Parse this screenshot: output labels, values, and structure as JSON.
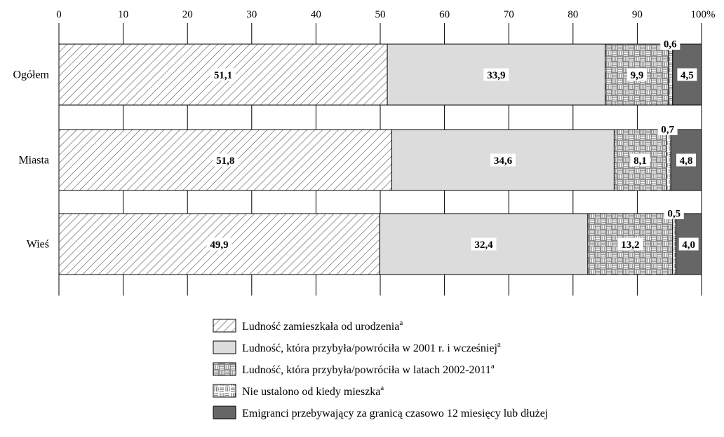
{
  "chart_data": {
    "type": "bar",
    "orientation": "horizontal",
    "stacked": true,
    "categories": [
      "Ogółem",
      "Miasta",
      "Wieś"
    ],
    "xlim": [
      0,
      100
    ],
    "x_ticks": [
      "0",
      "10",
      "20",
      "30",
      "40",
      "50",
      "60",
      "70",
      "80",
      "90",
      "100%"
    ],
    "grid": "vertical",
    "legend_position": "bottom",
    "series": [
      {
        "name": "Ludność zamieszkała od urodzenia",
        "sup": "a",
        "pattern": "diagonal-hatch",
        "color": "#ffffff",
        "values": [
          51.1,
          51.8,
          49.9
        ],
        "labels": [
          "51,1",
          "51,8",
          "49,9"
        ]
      },
      {
        "name": "Ludność, która przybyła/powróciła w 2001 r. i wcześniej",
        "sup": "a",
        "pattern": "solid",
        "color": "#dcdcdc",
        "values": [
          33.9,
          34.6,
          32.4
        ],
        "labels": [
          "33,9",
          "34,6",
          "32,4"
        ]
      },
      {
        "name": "Ludność, która przybyła/powróciła w latach 2002-2011",
        "sup": "a",
        "pattern": "weave-dark",
        "color": "#8c8c8c",
        "values": [
          9.9,
          8.1,
          13.2
        ],
        "labels": [
          "9,9",
          "8,1",
          "13,2"
        ]
      },
      {
        "name": "Nie ustalono od kiedy mieszka",
        "sup": "a",
        "pattern": "weave-light",
        "color": "#ffffff",
        "values": [
          0.6,
          0.7,
          0.5
        ],
        "labels": [
          "0,6",
          "0,7",
          "0,5"
        ]
      },
      {
        "name": "Emigranci przebywający za granicą czasowo 12 miesięcy lub dłużej",
        "sup": "",
        "pattern": "solid",
        "color": "#666666",
        "values": [
          4.5,
          4.8,
          4.0
        ],
        "labels": [
          "4,5",
          "4,8",
          "4,0"
        ]
      }
    ]
  }
}
